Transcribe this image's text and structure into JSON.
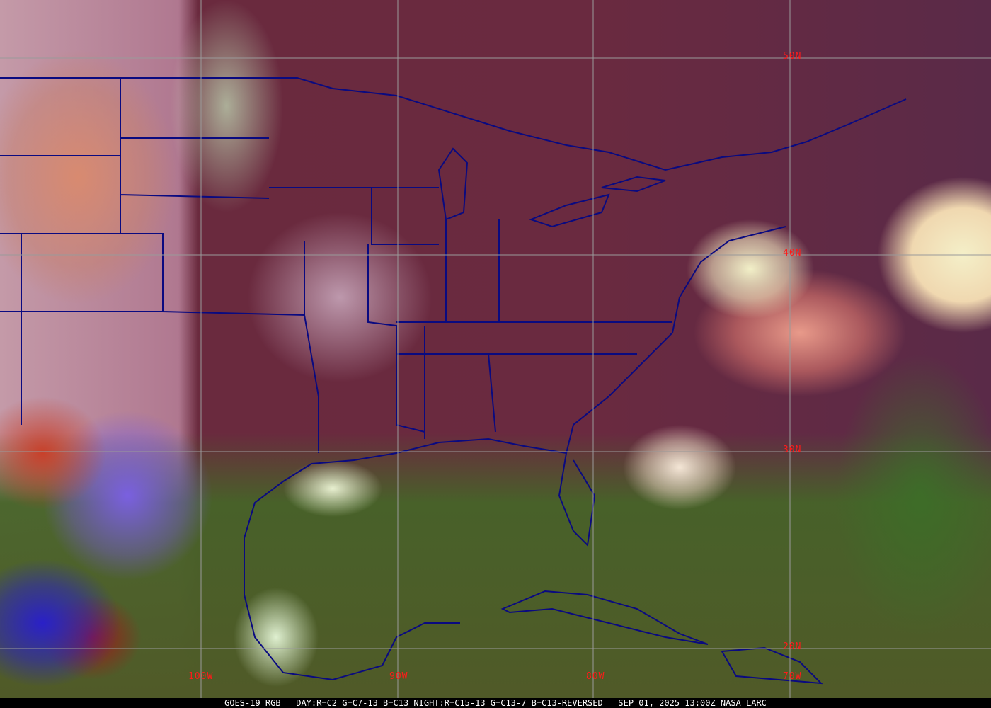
{
  "map": {
    "latitude_labels": [
      "50N",
      "40N",
      "30N",
      "20N"
    ],
    "longitude_labels": [
      "100W",
      "90W",
      "80W",
      "70W"
    ],
    "grid_color": "#9a9a9a",
    "label_color": "#ff1a1a",
    "border_color": "#0a0a80"
  },
  "caption": "GOES-19 RGB   DAY:R=C2 G=C7-13 B=C13 NIGHT:R=C15-13 G=C13-7 B=C13-REVERSED   SEP 01, 2025 13:00Z NASA LARC"
}
